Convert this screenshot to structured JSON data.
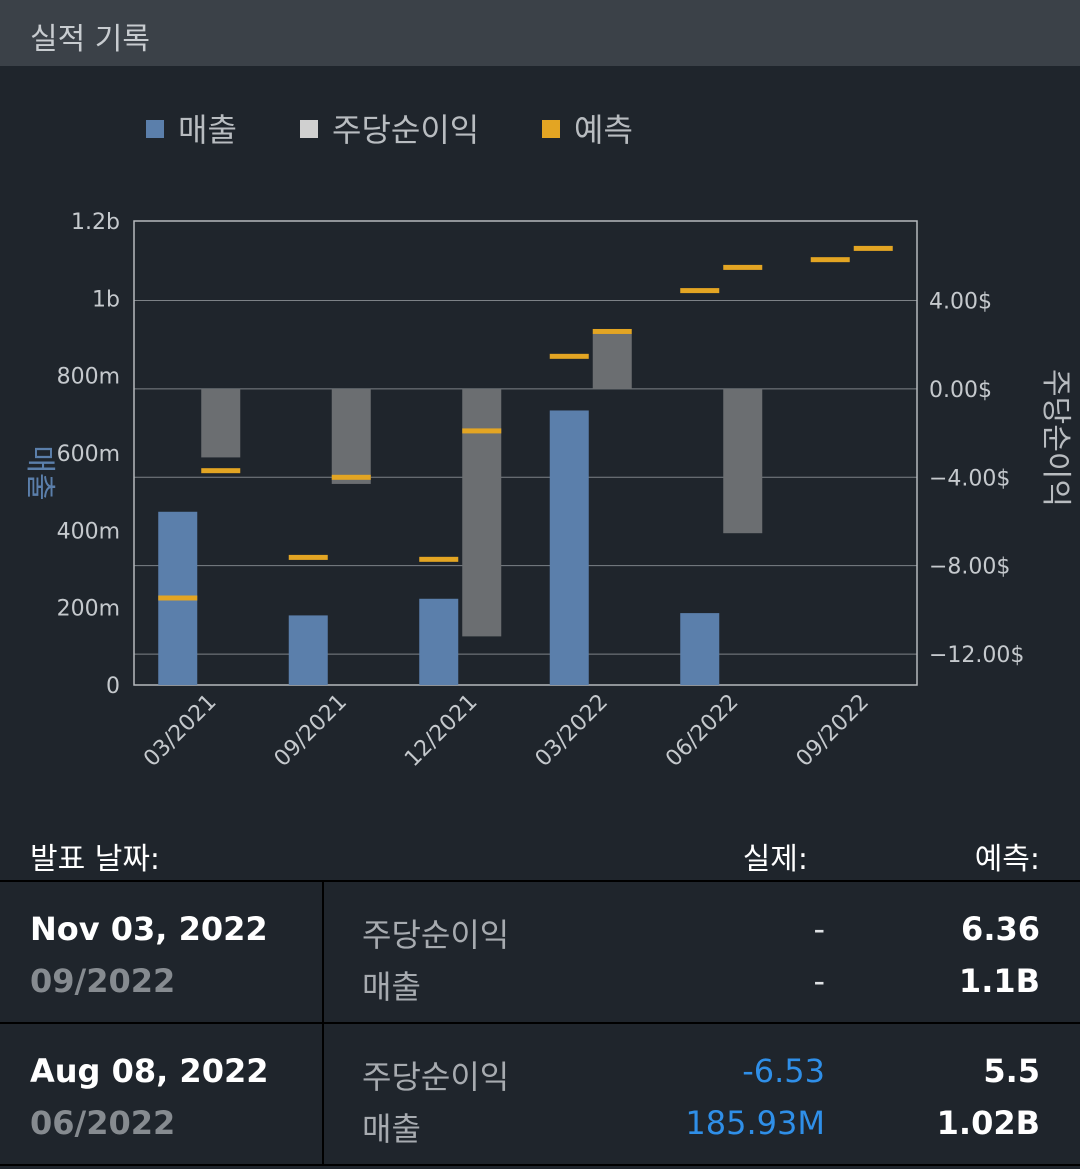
{
  "header": {
    "title": "실적 기록"
  },
  "legend": [
    {
      "label": "매출",
      "color": "#5b7fab"
    },
    {
      "label": "주당순이익",
      "color": "#d0d0d0"
    },
    {
      "label": "예측",
      "color": "#e3a523"
    }
  ],
  "chart_data": {
    "type": "bar",
    "categories": [
      "03/2021",
      "09/2021",
      "12/2021",
      "03/2022",
      "06/2022",
      "09/2022"
    ],
    "y_left": {
      "label": "매출",
      "ylim": [
        0,
        1200000000
      ],
      "ticks": [
        {
          "value": 0,
          "label": "0"
        },
        {
          "value": 200000000,
          "label": "200m"
        },
        {
          "value": 400000000,
          "label": "400m"
        },
        {
          "value": 600000000,
          "label": "600m"
        },
        {
          "value": 800000000,
          "label": "800m"
        },
        {
          "value": 1000000000,
          "label": "1b"
        },
        {
          "value": 1200000000,
          "label": "1.2b"
        }
      ]
    },
    "y_right": {
      "label": "주당순이익",
      "ylim": [
        -13.4,
        7.6
      ],
      "ticks": [
        {
          "value": -12,
          "label": "−12.00$"
        },
        {
          "value": -8,
          "label": "−8.00$"
        },
        {
          "value": -4,
          "label": "−4.00$"
        },
        {
          "value": 0,
          "label": "0.00$"
        },
        {
          "value": 4,
          "label": "4.00$"
        }
      ]
    },
    "grid": true,
    "legend_position": "top",
    "series": [
      {
        "name": "매출",
        "axis": "left",
        "color": "#5b7fab",
        "values": [
          448000000,
          180000000,
          223000000,
          710000000,
          185930000,
          null
        ]
      },
      {
        "name": "주당순이익",
        "axis": "right",
        "color": "#6b6e71",
        "values": [
          -3.1,
          -4.3,
          -11.2,
          2.5,
          -6.53,
          null
        ]
      },
      {
        "name": "예측",
        "axis": "right",
        "color": "#e3a523",
        "values": [
          {
            "eps": -3.7,
            "revenue": 225000000
          },
          {
            "eps": -4.0,
            "revenue": 330000000
          },
          {
            "eps": -1.9,
            "revenue": 325000000
          },
          {
            "eps": 2.6,
            "revenue": 850000000
          },
          {
            "eps": 5.5,
            "revenue": 1020000000
          },
          {
            "eps": 6.36,
            "revenue": 1100000000
          }
        ]
      }
    ]
  },
  "table": {
    "headers": {
      "date": "발표 날짜:",
      "actual": "실제:",
      "forecast": "예측:"
    },
    "rows": [
      {
        "date": "Nov 03, 2022",
        "period": "09/2022",
        "metrics": [
          {
            "label": "주당순이익",
            "actual": "-",
            "forecast": "6.36"
          },
          {
            "label": "매출",
            "actual": "-",
            "forecast": "1.1B"
          }
        ]
      },
      {
        "date": "Aug 08, 2022",
        "period": "06/2022",
        "metrics": [
          {
            "label": "주당순이익",
            "actual": "-6.53",
            "forecast": "5.5"
          },
          {
            "label": "매출",
            "actual": "185.93M",
            "forecast": "1.02B"
          }
        ]
      }
    ]
  }
}
